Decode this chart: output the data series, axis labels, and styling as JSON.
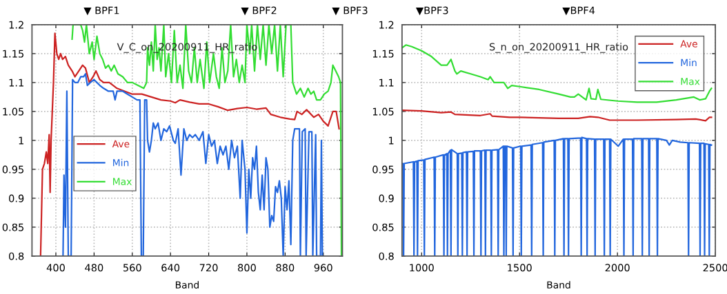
{
  "chart_data": [
    {
      "type": "line",
      "title": "V_C_on_20200911_HR_ratio",
      "xlabel": "Band",
      "xlim": [
        350,
        1000
      ],
      "ylim": [
        0.8,
        1.2
      ],
      "xticks": [
        400,
        480,
        560,
        640,
        720,
        800,
        880,
        960
      ],
      "yticks": [
        0.8,
        0.85,
        0.9,
        0.95,
        1,
        1.05,
        1.1,
        1.15,
        1.2
      ],
      "grid": true,
      "legend": "center left",
      "line_style": "solid",
      "annotations": [
        "▼ BPF1",
        "▼ BPF2",
        "▼ BPF3"
      ],
      "series": [
        {
          "name": "Ave",
          "color": "#cc2222",
          "x": [
            368,
            372,
            376,
            380,
            383,
            386,
            388,
            390,
            395,
            398,
            402,
            406,
            410,
            414,
            420,
            426,
            434,
            440,
            448,
            456,
            462,
            470,
            478,
            484,
            492,
            500,
            512,
            528,
            544,
            560,
            580,
            600,
            620,
            640,
            650,
            660,
            680,
            700,
            720,
            740,
            760,
            780,
            800,
            820,
            840,
            850,
            870,
            890,
            900,
            905,
            915,
            925,
            940,
            950,
            960,
            970,
            980,
            987,
            993
          ],
          "values": [
            0.8,
            0.95,
            0.96,
            0.98,
            0.96,
            1.01,
            0.91,
            1.0,
            1.1,
            1.185,
            1.15,
            1.14,
            1.15,
            1.14,
            1.145,
            1.13,
            1.12,
            1.11,
            1.12,
            1.13,
            1.125,
            1.1,
            1.11,
            1.12,
            1.105,
            1.1,
            1.1,
            1.09,
            1.085,
            1.08,
            1.08,
            1.075,
            1.07,
            1.068,
            1.065,
            1.07,
            1.066,
            1.063,
            1.063,
            1.058,
            1.052,
            1.055,
            1.057,
            1.054,
            1.056,
            1.045,
            1.04,
            1.037,
            1.036,
            1.05,
            1.045,
            1.053,
            1.04,
            1.045,
            1.033,
            1.025,
            1.05,
            1.05,
            1.02
          ]
        },
        {
          "name": "Min",
          "color": "#2266dd",
          "x": [
            415,
            417,
            420,
            423,
            426,
            432,
            435,
            440,
            446,
            452,
            458,
            462,
            466,
            472,
            480,
            486,
            492,
            500,
            510,
            520,
            524,
            528,
            540,
            550,
            560,
            570,
            576,
            579,
            583,
            586,
            590,
            592,
            596,
            600,
            604,
            608,
            614,
            620,
            626,
            632,
            638,
            646,
            650,
            656,
            662,
            668,
            674,
            680,
            686,
            692,
            700,
            708,
            714,
            720,
            726,
            732,
            738,
            744,
            750,
            756,
            762,
            768,
            774,
            780,
            786,
            790,
            796,
            800,
            804,
            808,
            812,
            816,
            820,
            824,
            828,
            832,
            836,
            840,
            844,
            848,
            852,
            856,
            860,
            864,
            868,
            872,
            876,
            880,
            884,
            888,
            892,
            896,
            900,
            910,
            912,
            916,
            922,
            924,
            930,
            936,
            938,
            944,
            946,
            954,
            956,
            958
          ],
          "values": [
            0.8,
            0.94,
            0.85,
            1.085,
            0.8,
            0.8,
            1.105,
            1.1,
            1.1,
            1.11,
            1.11,
            1.115,
            1.095,
            1.1,
            1.105,
            1.1,
            1.095,
            1.09,
            1.085,
            1.085,
            1.07,
            1.085,
            1.085,
            1.08,
            1.075,
            1.07,
            1.07,
            0.8,
            0.8,
            1.07,
            1.07,
            1.0,
            0.98,
            1.0,
            1.03,
            1.02,
            1.03,
            1.0,
            1.02,
            1.015,
            1.025,
            1.0,
            0.995,
            1.02,
            0.94,
            1.02,
            1.0,
            1.01,
            1.005,
            1.01,
            1.0,
            1.015,
            0.96,
            1.01,
            0.99,
            1.0,
            0.96,
            0.99,
            0.975,
            0.99,
            0.95,
            1.0,
            0.97,
            0.99,
            0.9,
            1.0,
            0.95,
            0.84,
            0.95,
            0.9,
            0.97,
            0.95,
            0.99,
            0.91,
            0.88,
            0.94,
            0.88,
            0.97,
            0.95,
            0.85,
            0.87,
            0.86,
            0.92,
            0.91,
            0.93,
            0.9,
            0.8,
            0.92,
            0.88,
            0.93,
            0.82,
            1.0,
            1.02,
            1.02,
            0.8,
            1.015,
            1.02,
            0.8,
            1.015,
            1.015,
            0.8,
            1.01,
            0.8,
            0.8,
            1.0,
            0.8
          ]
        },
        {
          "name": "Max",
          "color": "#33dd33",
          "x": [
            434,
            436,
            440,
            452,
            456,
            460,
            464,
            470,
            476,
            480,
            486,
            492,
            498,
            504,
            510,
            516,
            522,
            530,
            540,
            550,
            560,
            572,
            584,
            590,
            592,
            596,
            600,
            604,
            608,
            612,
            616,
            620,
            626,
            630,
            636,
            642,
            648,
            654,
            660,
            666,
            672,
            678,
            684,
            690,
            696,
            702,
            710,
            716,
            722,
            730,
            736,
            742,
            748,
            754,
            760,
            766,
            772,
            778,
            784,
            790,
            796,
            800,
            806,
            810,
            816,
            822,
            828,
            834,
            840,
            846,
            852,
            858,
            864,
            870,
            876,
            882,
            888,
            892,
            896,
            904,
            912,
            920,
            928,
            934,
            940,
            946,
            954,
            962,
            970,
            976,
            980,
            986,
            992,
            996,
            998
          ],
          "values": [
            1.175,
            1.2,
            1.2,
            1.2,
            1.19,
            1.17,
            1.2,
            1.15,
            1.17,
            1.14,
            1.18,
            1.15,
            1.14,
            1.125,
            1.13,
            1.12,
            1.13,
            1.115,
            1.11,
            1.1,
            1.1,
            1.095,
            1.09,
            1.1,
            1.16,
            1.13,
            1.17,
            1.12,
            1.2,
            1.14,
            1.16,
            1.12,
            1.2,
            1.11,
            1.15,
            1.1,
            1.19,
            1.1,
            1.13,
            1.09,
            1.2,
            1.12,
            1.1,
            1.16,
            1.1,
            1.14,
            1.09,
            1.17,
            1.1,
            1.15,
            1.11,
            1.09,
            1.16,
            1.1,
            1.12,
            1.2,
            1.11,
            1.14,
            1.1,
            1.13,
            1.1,
            1.2,
            1.15,
            1.2,
            1.12,
            1.2,
            1.14,
            1.2,
            1.13,
            1.2,
            1.15,
            1.2,
            1.12,
            1.2,
            1.11,
            1.2,
            1.2,
            1.2,
            1.1,
            1.08,
            1.09,
            1.075,
            1.09,
            1.08,
            1.085,
            1.07,
            1.07,
            1.08,
            1.085,
            1.1,
            1.13,
            1.12,
            1.11,
            1.1,
            0.8
          ]
        }
      ]
    },
    {
      "type": "line",
      "title": "S_n_on_20200911_HR_ratio",
      "xlabel": "Band",
      "xlim": [
        900,
        2500
      ],
      "ylim": [
        0.8,
        1.2
      ],
      "xticks": [
        1000,
        1500,
        2000,
        2500
      ],
      "yticks": [
        0.8,
        0.85,
        0.9,
        0.95,
        1,
        1.05,
        1.1,
        1.15,
        1.2
      ],
      "grid": true,
      "legend": "top right",
      "line_style": "solid",
      "annotations": [
        "▼BPF3",
        "▼BPF4"
      ],
      "series": [
        {
          "name": "Ave",
          "color": "#cc2222",
          "x": [
            900,
            1000,
            1100,
            1150,
            1170,
            1300,
            1350,
            1360,
            1450,
            1500,
            1700,
            1800,
            1860,
            1900,
            1960,
            2100,
            2300,
            2400,
            2450,
            2470,
            2480
          ],
          "values": [
            1.052,
            1.051,
            1.048,
            1.049,
            1.045,
            1.043,
            1.046,
            1.042,
            1.04,
            1.04,
            1.038,
            1.038,
            1.041,
            1.04,
            1.035,
            1.035,
            1.036,
            1.037,
            1.034,
            1.04,
            1.04
          ]
        },
        {
          "name": "Min",
          "color": "#2266dd",
          "x": [
            900,
            905,
            908,
            911,
            958,
            961,
            964,
            976,
            979,
            982,
            1011,
            1014,
            1017,
            1064,
            1067,
            1070,
            1111,
            1114,
            1117,
            1129,
            1132,
            1135,
            1147,
            1150,
            1153,
            1182,
            1185,
            1188,
            1205,
            1208,
            1211,
            1229,
            1232,
            1235,
            1264,
            1267,
            1270,
            1300,
            1303,
            1306,
            1323,
            1326,
            1329,
            1353,
            1356,
            1359,
            1388,
            1391,
            1394,
            1417,
            1420,
            1423,
            1429,
            1432,
            1435,
            1464,
            1467,
            1470,
            1506,
            1509,
            1512,
            1559,
            1562,
            1565,
            1618,
            1621,
            1624,
            1677,
            1680,
            1683,
            1724,
            1727,
            1730,
            1747,
            1750,
            1753,
            1800,
            1812,
            1815,
            1818,
            1842,
            1845,
            1848,
            1883,
            1886,
            1889,
            1930,
            1933,
            1936,
            1960,
            1963,
            1966,
            2004,
            2030,
            2033,
            2036,
            2077,
            2080,
            2083,
            2124,
            2127,
            2130,
            2159,
            2162,
            2165,
            2201,
            2204,
            2207,
            2250,
            2265,
            2280,
            2320,
            2360,
            2363,
            2366,
            2419,
            2422,
            2425,
            2442,
            2445,
            2448,
            2466,
            2469,
            2472,
            2480
          ],
          "values": [
            0.96,
            0.96,
            0.8,
            0.96,
            0.963,
            0.8,
            0.963,
            0.964,
            0.8,
            0.965,
            0.966,
            0.8,
            0.967,
            0.971,
            0.8,
            0.971,
            0.975,
            0.8,
            0.975,
            0.977,
            0.8,
            0.977,
            0.983,
            0.8,
            0.984,
            0.977,
            0.8,
            0.977,
            0.978,
            0.8,
            0.979,
            0.98,
            0.8,
            0.98,
            0.981,
            0.8,
            0.982,
            0.982,
            0.8,
            0.982,
            0.983,
            0.8,
            0.983,
            0.983,
            0.8,
            0.983,
            0.984,
            0.8,
            0.984,
            0.99,
            0.8,
            0.99,
            0.99,
            0.8,
            0.99,
            0.987,
            0.8,
            0.987,
            0.99,
            0.8,
            0.99,
            0.992,
            0.8,
            0.993,
            0.996,
            0.8,
            0.997,
            1.0,
            0.8,
            1.0,
            1.003,
            0.8,
            1.003,
            1.003,
            0.8,
            1.003,
            1.004,
            1.004,
            0.8,
            1.005,
            1.003,
            0.8,
            1.003,
            1.002,
            0.8,
            1.002,
            1.002,
            0.8,
            1.002,
            1.002,
            0.8,
            1.002,
            0.99,
            1.002,
            0.8,
            1.002,
            1.002,
            0.8,
            1.003,
            1.003,
            0.8,
            1.003,
            1.003,
            0.8,
            1.003,
            1.003,
            0.8,
            1.003,
            1.0,
            0.992,
            1.0,
            0.997,
            0.996,
            0.8,
            0.996,
            0.995,
            0.8,
            0.995,
            0.995,
            0.8,
            0.994,
            0.993,
            0.8,
            0.993,
            0.992
          ]
        },
        {
          "name": "Max",
          "color": "#33dd33",
          "x": [
            900,
            920,
            950,
            1000,
            1050,
            1100,
            1130,
            1150,
            1170,
            1180,
            1200,
            1250,
            1300,
            1340,
            1350,
            1370,
            1420,
            1440,
            1460,
            1500,
            1600,
            1700,
            1760,
            1780,
            1800,
            1840,
            1855,
            1865,
            1890,
            1900,
            1915,
            2000,
            2100,
            2200,
            2300,
            2390,
            2420,
            2450,
            2470,
            2480
          ],
          "values": [
            1.16,
            1.165,
            1.162,
            1.155,
            1.145,
            1.13,
            1.13,
            1.14,
            1.12,
            1.115,
            1.12,
            1.115,
            1.11,
            1.105,
            1.11,
            1.1,
            1.1,
            1.09,
            1.095,
            1.093,
            1.088,
            1.08,
            1.075,
            1.075,
            1.08,
            1.07,
            1.09,
            1.072,
            1.071,
            1.088,
            1.071,
            1.068,
            1.066,
            1.066,
            1.07,
            1.075,
            1.07,
            1.072,
            1.085,
            1.09
          ]
        }
      ]
    }
  ]
}
